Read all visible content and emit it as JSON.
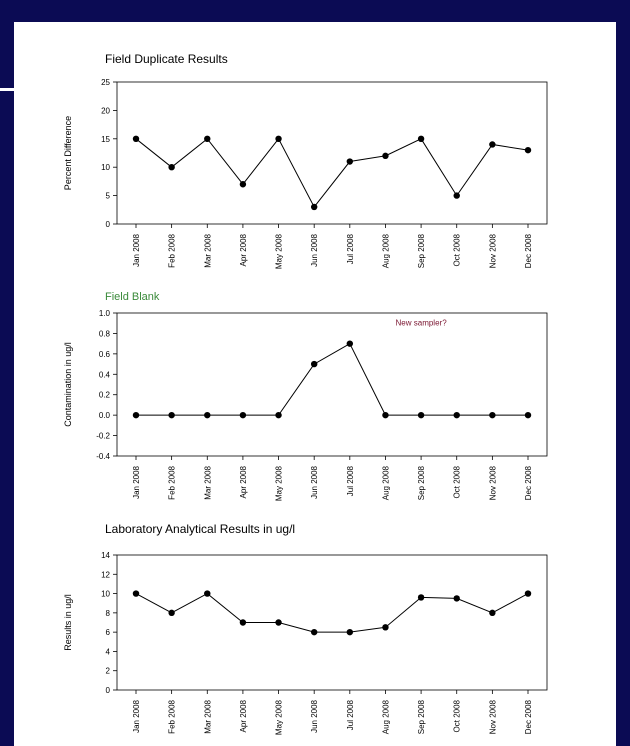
{
  "colors": {
    "background": "#0b0b54",
    "paper": "#ffffff",
    "series": "#000000",
    "field_blank_title": "#3a8a3a",
    "annotation": "#7a1530"
  },
  "chart_data": [
    {
      "type": "line",
      "title": "Field Duplicate Results",
      "xlabel": "",
      "ylabel": "Percent Difference",
      "categories": [
        "Jan 2008",
        "Feb 2008",
        "Mar 2008",
        "Apr 2008",
        "May 2008",
        "Jun 2008",
        "Jul 2008",
        "Aug 2008",
        "Sep 2008",
        "Oct 2008",
        "Nov 2008",
        "Dec 2008"
      ],
      "values": [
        15,
        10,
        15,
        7,
        15,
        3,
        11,
        12,
        15,
        5,
        14,
        13
      ],
      "ylim": [
        0,
        25
      ],
      "yticks": [
        "0",
        "5",
        "10",
        "15",
        "20",
        "25"
      ],
      "grid": false,
      "annotations": []
    },
    {
      "type": "line",
      "title": "Field Blank",
      "xlabel": "",
      "ylabel": "Contamination in ug/l",
      "categories": [
        "Jan 2008",
        "Feb 2008",
        "Mar 2008",
        "Apr 2008",
        "May 2008",
        "Jun 2008",
        "Jul 2008",
        "Aug 2008",
        "Sep 2008",
        "Oct 2008",
        "Nov 2008",
        "Dec 2008"
      ],
      "values": [
        0,
        0,
        0,
        0,
        0,
        0.5,
        0.7,
        0,
        0,
        0,
        0,
        0
      ],
      "ylim": [
        -0.4,
        1.0
      ],
      "yticks": [
        "-0.4",
        "-0.2",
        "0.0",
        "0.2",
        "0.4",
        "0.6",
        "0.8",
        "1.0"
      ],
      "grid": false,
      "annotations": [
        {
          "text": "New sampler?",
          "x": "Sep 2008",
          "y": 0.88
        }
      ]
    },
    {
      "type": "line",
      "title": "Laboratory Analytical Results in ug/l",
      "xlabel": "",
      "ylabel": "Results in ug/l",
      "categories": [
        "Jan 2008",
        "Feb 2008",
        "Mar 2008",
        "Apr 2008",
        "May 2008",
        "Jun 2008",
        "Jul 2008",
        "Aug 2008",
        "Sep 2008",
        "Oct 2008",
        "Nov 2008",
        "Dec 2008"
      ],
      "values": [
        10,
        8,
        10,
        7,
        7,
        6,
        6,
        6.5,
        9.6,
        9.5,
        8,
        10
      ],
      "ylim": [
        0,
        14
      ],
      "yticks": [
        "0",
        "2",
        "4",
        "6",
        "8",
        "10",
        "12",
        "14"
      ],
      "grid": false,
      "annotations": []
    }
  ]
}
